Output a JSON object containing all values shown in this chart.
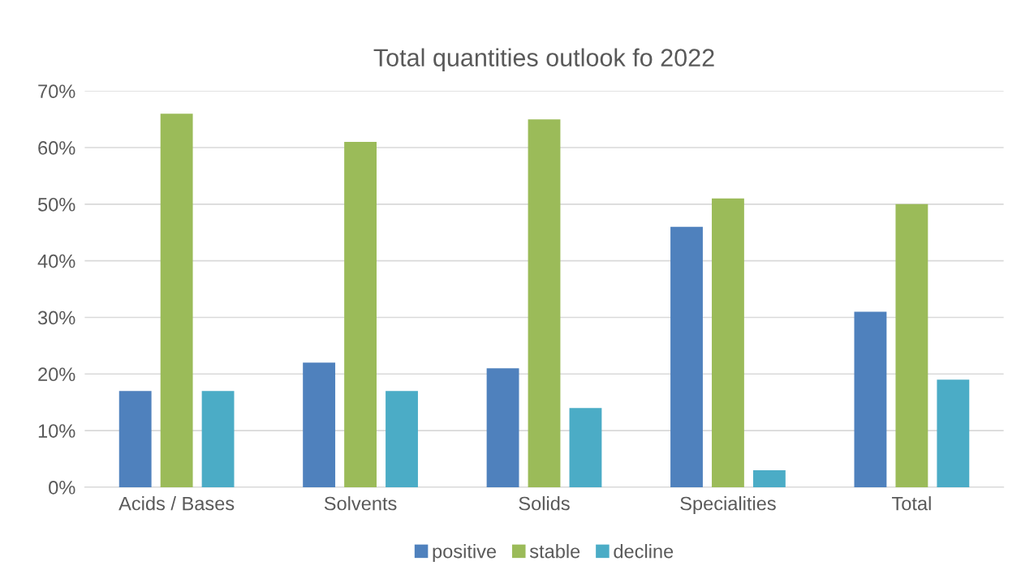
{
  "chart_data": {
    "type": "bar",
    "title": "Total quantities outlook fo 2022",
    "categories": [
      "Acids / Bases",
      "Solvents",
      "Solids",
      "Specialities",
      "Total"
    ],
    "series": [
      {
        "name": "positive",
        "color": "#4f81bd",
        "values": [
          17,
          22,
          21,
          46,
          31
        ]
      },
      {
        "name": "stable",
        "color": "#9bbb59",
        "values": [
          66,
          61,
          65,
          51,
          50
        ]
      },
      {
        "name": "decline",
        "color": "#4bacc6",
        "values": [
          17,
          17,
          14,
          3,
          19
        ]
      }
    ],
    "ylim": [
      0,
      70
    ],
    "yticks": [
      {
        "value": 0,
        "label": "0%"
      },
      {
        "value": 10,
        "label": "10%"
      },
      {
        "value": 20,
        "label": "20%"
      },
      {
        "value": 30,
        "label": "30%"
      },
      {
        "value": 40,
        "label": "40%"
      },
      {
        "value": 50,
        "label": "50%"
      },
      {
        "value": 60,
        "label": "60%"
      },
      {
        "value": 70,
        "label": "70%"
      }
    ],
    "grid": "y",
    "legend": "bottom"
  }
}
